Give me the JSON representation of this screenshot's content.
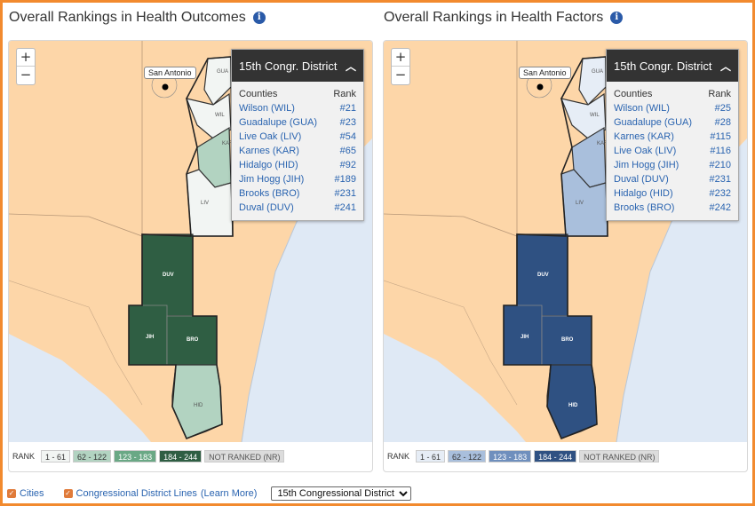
{
  "left": {
    "title": "Overall Rankings in Health Outcomes",
    "info_icon": "i",
    "zoom_in": "+",
    "zoom_out": "−",
    "city": "San Antonio",
    "popup": {
      "heading": "15th Congr. District",
      "col_counties": "Counties",
      "col_rank": "Rank",
      "rows": [
        {
          "county": "Wilson (WIL)",
          "rank": "#21"
        },
        {
          "county": "Guadalupe (GUA)",
          "rank": "#23"
        },
        {
          "county": "Live Oak (LIV)",
          "rank": "#54"
        },
        {
          "county": "Karnes (KAR)",
          "rank": "#65"
        },
        {
          "county": "Hidalgo (HID)",
          "rank": "#92"
        },
        {
          "county": "Jim Hogg (JIH)",
          "rank": "#189"
        },
        {
          "county": "Brooks (BRO)",
          "rank": "#231"
        },
        {
          "county": "Duval (DUV)",
          "rank": "#241"
        }
      ]
    },
    "county_labels": {
      "gua": "GUA",
      "wil": "WIL",
      "kar": "KAR",
      "liv": "LIV",
      "duv": "DUV",
      "jih": "JIH",
      "bro": "BRO",
      "hid": "HID"
    },
    "legend": {
      "label": "RANK",
      "items": [
        {
          "text": "1 - 61",
          "bg": "#f2f5f3",
          "fg": "#333"
        },
        {
          "text": "62 - 122",
          "bg": "#b2d3c1",
          "fg": "#333"
        },
        {
          "text": "123 - 183",
          "bg": "#6aa885",
          "fg": "#fff"
        },
        {
          "text": "184 - 244",
          "bg": "#2f5e43",
          "fg": "#fff"
        },
        {
          "text": "NOT RANKED (NR)",
          "bg": "#dcdcdc",
          "fg": "#555"
        }
      ]
    }
  },
  "right": {
    "title": "Overall Rankings in Health Factors",
    "info_icon": "i",
    "zoom_in": "+",
    "zoom_out": "−",
    "city": "San Antonio",
    "popup": {
      "heading": "15th Congr. District",
      "col_counties": "Counties",
      "col_rank": "Rank",
      "rows": [
        {
          "county": "Wilson (WIL)",
          "rank": "#25"
        },
        {
          "county": "Guadalupe (GUA)",
          "rank": "#28"
        },
        {
          "county": "Karnes (KAR)",
          "rank": "#115"
        },
        {
          "county": "Live Oak (LIV)",
          "rank": "#116"
        },
        {
          "county": "Jim Hogg (JIH)",
          "rank": "#210"
        },
        {
          "county": "Duval (DUV)",
          "rank": "#231"
        },
        {
          "county": "Hidalgo (HID)",
          "rank": "#232"
        },
        {
          "county": "Brooks (BRO)",
          "rank": "#242"
        }
      ]
    },
    "county_labels": {
      "gua": "GUA",
      "wil": "WIL",
      "kar": "KAR",
      "liv": "LIV",
      "duv": "DUV",
      "jih": "JIH",
      "bro": "BRO",
      "hid": "HID"
    },
    "legend": {
      "label": "RANK",
      "items": [
        {
          "text": "1 - 61",
          "bg": "#e6edf6",
          "fg": "#333"
        },
        {
          "text": "62 - 122",
          "bg": "#a9bfdc",
          "fg": "#333"
        },
        {
          "text": "123 - 183",
          "bg": "#6f8fbd",
          "fg": "#fff"
        },
        {
          "text": "184 - 244",
          "bg": "#2f5182",
          "fg": "#fff"
        },
        {
          "text": "NOT RANKED (NR)",
          "bg": "#dcdcdc",
          "fg": "#555"
        }
      ]
    }
  },
  "controls": {
    "cities_label": "Cities",
    "cities_checked": true,
    "district_lines_label": "Congressional District Lines",
    "learn_more": "(Learn More)",
    "district_lines_checked": true,
    "district_select": "15th Congressional District",
    "checkbox_mark": "✓"
  },
  "colors": {
    "land": "#fdd6a8",
    "water": "#dfe9f5",
    "accent_border": "#f28a2e",
    "link": "#2a64b0"
  }
}
